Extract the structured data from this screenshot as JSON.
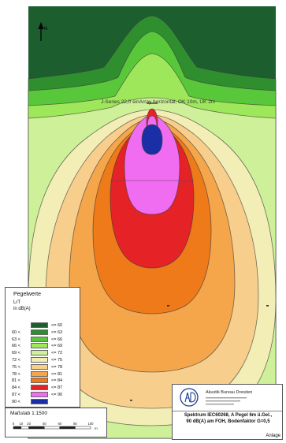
{
  "map": {
    "source_label": "J-Series 22,0 einArray horizontal, OK 10m, UK 2m",
    "north_symbol": "N"
  },
  "legend": {
    "title": "Pegelwerte",
    "quantity": "LrT",
    "unit": "in dB(A)",
    "bands": [
      {
        "lo": "",
        "hi": "<= 60",
        "color": "#1d5e2f"
      },
      {
        "lo": "60 <",
        "hi": "<= 63",
        "color": "#2f8f2f"
      },
      {
        "lo": "63 <",
        "hi": "<= 66",
        "color": "#58c83a"
      },
      {
        "lo": "66 <",
        "hi": "<= 69",
        "color": "#9ee75a"
      },
      {
        "lo": "69 <",
        "hi": "<= 72",
        "color": "#cdf098"
      },
      {
        "lo": "72 <",
        "hi": "<= 75",
        "color": "#f2eeb6"
      },
      {
        "lo": "75 <",
        "hi": "<= 78",
        "color": "#f8ce8c"
      },
      {
        "lo": "78 <",
        "hi": "<= 81",
        "color": "#f5a54a"
      },
      {
        "lo": "81 <",
        "hi": "<= 84",
        "color": "#ee7a1a"
      },
      {
        "lo": "84 <",
        "hi": "<= 87",
        "color": "#e52226"
      },
      {
        "lo": "87 <",
        "hi": "<= 90",
        "color": "#f06cf0"
      },
      {
        "lo": "90 <",
        "hi": "",
        "color": "#1a2fa5"
      }
    ]
  },
  "scale": {
    "title": "Maßstab 1:1500",
    "ticks": [
      "0",
      "10",
      "20",
      "40",
      "60",
      "80",
      "100"
    ],
    "unit": "m"
  },
  "titleblock": {
    "company": "Akustik Bureau Dresden",
    "description_lines": [
      "Spektrum IEC60268, A Pegel 6m ü.Gel.,",
      "90 dB(A) am FOH, Bodenfaktor G=0,5"
    ],
    "attachment_label": "Anlage"
  },
  "colors": {
    "background": "#1d5e2f",
    "contour_line": "#3a3a3a"
  }
}
